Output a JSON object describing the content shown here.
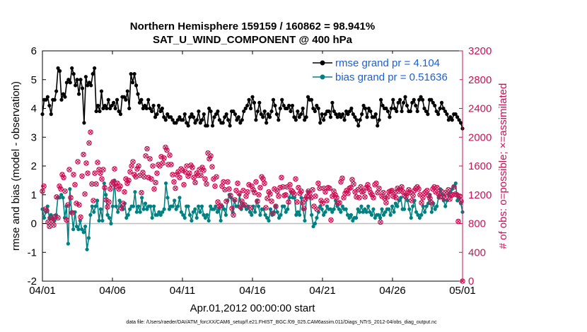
{
  "chart_data": {
    "type": "line",
    "title_line1": "Northern Hemisphere 159159 / 160862 = 98.941%",
    "title_line2": "SAT_U_WIND_COMPONENT @ 400 hPa",
    "xlabel": "Apr.01,2012 00:00:00 start",
    "ylabel_left": "rmse and bias (model - observation)",
    "ylabel_right": "# of obs: o=possible; ×=assimilated",
    "footer": "data file: /Users/raeder/DAI/ATM_forcXX/CAM6_setup/f.e21.FHIST_BGC.f09_025.CAM6assim.011/Diags_NTrS_2012-04/obs_diag_output.nc",
    "x_range": [
      0,
      30
    ],
    "x_ticks": [
      0,
      5,
      10,
      15,
      20,
      25,
      30
    ],
    "x_tick_labels": [
      "04/01",
      "04/06",
      "04/11",
      "04/16",
      "04/21",
      "04/26",
      "05/01"
    ],
    "ylim_left": [
      -2,
      6
    ],
    "y_ticks_left": [
      -2,
      -1,
      0,
      1,
      2,
      3,
      4,
      5,
      6
    ],
    "ylim_right": [
      0,
      3200
    ],
    "y_ticks_right": [
      0,
      400,
      800,
      1200,
      1600,
      2000,
      2400,
      2800,
      3200
    ],
    "colors": {
      "rmse": "#000000",
      "bias": "#008080",
      "obs": "#cc1155",
      "right_axis": "#cc1155",
      "legend_text": "#1a5fd8",
      "zero_line": "#bdbdbd"
    },
    "legend_location": "top-right",
    "series": [
      {
        "name": "rmse grand pr = 4.104",
        "key": "rmse",
        "values": [
          3.8,
          4.3,
          4.3,
          4.4,
          4.1,
          3.8,
          4.3,
          4.3,
          4.6,
          5.4,
          5.3,
          4.3,
          4.5,
          4.4,
          4.9,
          5.0,
          4.9,
          5.4,
          5.2,
          4.8,
          5.0,
          4.5,
          5.0,
          4.7,
          3.5,
          5.1,
          4.8,
          4.9,
          4.8,
          5.2,
          5.4,
          3.9,
          4.1,
          3.9,
          4.6,
          4.0,
          4.1,
          4.0,
          4.3,
          4.0,
          4.1,
          4.2,
          4.0,
          4.3,
          3.9,
          3.8,
          4.4,
          4.4,
          4.3,
          4.6,
          4.0,
          5.2,
          4.9,
          5.2,
          4.8,
          4.5,
          4.2,
          4.3,
          4.0,
          4.1,
          4.0,
          4.3,
          4.0,
          3.9,
          4.1,
          3.7,
          3.8,
          4.1,
          3.9,
          4.0,
          3.7,
          3.6,
          3.8,
          3.7,
          3.7,
          3.6,
          3.5,
          3.5,
          3.6,
          3.7,
          3.6,
          3.6,
          3.8,
          3.5,
          3.4,
          3.7,
          3.8,
          3.7,
          3.5,
          3.6,
          3.9,
          3.5,
          3.6,
          3.8,
          3.4,
          3.4,
          4.0,
          3.9,
          3.4,
          3.7,
          3.8,
          3.9,
          3.6,
          3.5,
          3.5,
          3.7,
          3.8,
          3.6,
          3.4,
          3.9,
          3.9,
          3.8,
          3.6,
          3.7,
          3.5,
          3.6,
          3.9,
          4.0,
          4.1,
          4.3,
          4.0,
          4.4,
          4.2,
          3.6,
          3.9,
          4.2,
          3.8,
          3.7,
          3.9,
          3.5,
          3.8,
          3.7,
          3.9,
          4.3,
          4.1,
          3.8,
          3.6,
          4.0,
          4.3,
          4.1,
          4.0,
          4.0,
          4.1,
          3.9,
          4.1,
          3.7,
          3.6,
          3.9,
          3.7,
          3.8,
          4.0,
          3.6,
          3.7,
          4.4,
          4.3,
          4.3,
          4.0,
          3.9,
          4.1,
          4.0,
          3.5,
          3.8,
          3.6,
          3.8,
          3.9,
          3.9,
          3.7,
          4.2,
          3.9,
          3.8,
          3.7,
          3.8,
          3.7,
          3.8,
          3.6,
          3.9,
          3.8,
          3.9,
          4.0,
          3.8,
          3.7,
          3.6,
          3.4,
          3.6,
          3.8,
          4.1,
          4.0,
          3.7,
          4.0,
          3.9,
          3.7,
          3.7,
          3.8,
          3.4,
          3.6,
          4.3,
          4.1,
          4.0,
          4.0,
          3.9,
          3.7,
          4.0,
          4.3,
          4.0,
          3.9,
          4.2,
          4.3,
          3.9,
          4.2,
          4.4,
          4.1,
          3.9,
          3.9,
          4.2,
          4.3,
          4.1,
          3.9,
          4.3,
          4.4,
          4.3,
          4.0,
          3.9,
          3.8,
          4.3,
          4.3,
          4.2,
          4.1,
          3.9,
          3.8,
          4.0,
          4.2,
          4.0,
          3.9,
          3.8,
          3.6,
          3.7,
          3.6,
          3.8,
          3.8,
          3.7,
          3.6,
          3.5,
          3.3
        ]
      },
      {
        "name": "bias grand pr = 0.51636",
        "key": "bias",
        "values": [
          0.5,
          0.2,
          0.4,
          0.6,
          0.2,
          0.3,
          0.2,
          0.1,
          0.3,
          0.9,
          0.9,
          1.0,
          0.9,
          0.2,
          0.6,
          -0.7,
          1.2,
          0.4,
          -0.2,
          0.4,
          -0.1,
          -0.2,
          0.1,
          -0.2,
          -0.3,
          -0.1,
          -0.9,
          -0.5,
          0.3,
          0.6,
          0.4,
          0.6,
          0.8,
          0.1,
          0.5,
          0.1,
          1.4,
          1.0,
          0.3,
          0.2,
          0.0,
          0.6,
          1.5,
          0.6,
          0.4,
          0.8,
          0.6,
          0.5,
          0.7,
          0.2,
          0.3,
          0.5,
          0.6,
          0.6,
          1.1,
          0.4,
          0.6,
          0.4,
          0.9,
          0.5,
          0.7,
          0.5,
          0.6,
          0.6,
          0.2,
          0.6,
          0.3,
          0.3,
          0.4,
          0.3,
          0.4,
          0.5,
          1.4,
          0.9,
          0.5,
          0.6,
          0.6,
          0.8,
          0.5,
          0.6,
          0.9,
          0.4,
          0.3,
          0.2,
          0.6,
          0.6,
          0.3,
          0.1,
          0.4,
          0.5,
          0.2,
          0.6,
          0.4,
          0.6,
          0.3,
          0.2,
          0.3,
          0.1,
          0.6,
          0.5,
          0.5,
          0.6,
          0.4,
          0.5,
          0.1,
          0.6,
          0.5,
          0.3,
          0.8,
          1.0,
          0.9,
          0.4,
          0.8,
          0.6,
          0.6,
          1.0,
          0.5,
          0.7,
          0.6,
          0.5,
          0.6,
          0.4,
          0.3,
          0.6,
          0.4,
          0.8,
          0.6,
          0.3,
          0.5,
          0.5,
          0.3,
          0.2,
          0.1,
          0.5,
          0.3,
          0.4,
          0.6,
          0.4,
          0.2,
          0.3,
          0.6,
          0.6,
          0.4,
          0.5,
          0.9,
          1.1,
          0.9,
          0.9,
          0.3,
          0.4,
          0.3,
          0.9,
          0.5,
          0.1,
          0.9,
          1.1,
          0.9,
          0.3,
          -0.1,
          0.0,
          0.2,
          0.4,
          0.6,
          0.5,
          0.3,
          0.4,
          0.6,
          0.5,
          0.5,
          0.4,
          0.5,
          0.8,
          0.6,
          0.5,
          0.4,
          0.6,
          0.5,
          0.5,
          0.3,
          0.2,
          0.3,
          0.1,
          0.2,
          0.2,
          0.5,
          0.4,
          0.6,
          0.4,
          0.5,
          0.4,
          0.6,
          0.4,
          0.3,
          0.5,
          0.2,
          0.3,
          0.3,
          0.2,
          0.5,
          0.3,
          0.4,
          0.5,
          0.5,
          0.3,
          0.6,
          0.4,
          0.7,
          0.6,
          0.8,
          0.9,
          0.5,
          0.5,
          1.0,
          0.8,
          0.5,
          0.2,
          0.6,
          0.8,
          0.4,
          0.3,
          0.2,
          0.3,
          0.6,
          0.4,
          0.6,
          0.7,
          1.0,
          0.4,
          0.7,
          0.5,
          0.6,
          0.9,
          1.2,
          1.0,
          0.8,
          0.6,
          0.8,
          1.0,
          1.1,
          1.2,
          1.3,
          1.4,
          0.8,
          0.9,
          0.7,
          0.4
        ]
      },
      {
        "name": "# of obs (assimilated)",
        "key": "obs",
        "values": [
          1250,
          1320,
          1000,
          980,
          820,
          760,
          880,
          840,
          780,
          900,
          1170,
          880,
          1320,
          1280,
          1480,
          1440,
          1250,
          850,
          1060,
          1550,
          1160,
          950,
          1480,
          1340,
          1080,
          1660,
          1060,
          890,
          1460,
          1760,
          1210,
          1640,
          1500,
          1920,
          2070,
          1350,
          1120,
          1500,
          1350,
          1650,
          1550,
          1500,
          1420,
          1550,
          1300,
          1130,
          1030,
          1100,
          1280,
          1350,
          1380,
          1560,
          1320,
          1360,
          1280,
          1320,
          1010,
          1080,
          1240,
          1420,
          1360,
          1400,
          1520,
          1600,
          1660,
          1480,
          1450,
          1560,
          1600,
          1470,
          1230,
          1510,
          1450,
          1740,
          1840,
          1440,
          1700,
          1420,
          1600,
          1280,
          1370,
          1500,
          1620,
          1600,
          1730,
          1640,
          1710,
          1860,
          1820,
          1620,
          1750,
          1620,
          1480,
          1380,
          1290,
          1480,
          1520,
          1440,
          1560,
          1540,
          1340,
          1520,
          1600,
          1460,
          1500,
          1610,
          1580,
          1440,
          1370,
          1500,
          1470,
          1550,
          1470,
          1580,
          1540,
          1420,
          1350,
          1780,
          1700,
          1740,
          1590,
          1420,
          1320,
          1450,
          1100,
          1040,
          1050,
          1320,
          1380,
          1270,
          1110,
          1380,
          1280,
          1190,
          1010,
          920,
          1130,
          1260,
          1360,
          1220,
          1030,
          1110,
          1260,
          1060,
          1180,
          1240,
          1340,
          1020,
          1320,
          1270,
          1230,
          1380,
          1110,
          1200,
          1300,
          1450,
          1420,
          1360,
          1020,
          1150,
          1240,
          1210,
          1110,
          940,
          1280,
          1040,
          1250,
          1180,
          1300,
          1440,
          1310,
          1190,
          1200,
          1310,
          1100,
          1340,
          1260,
          1240,
          1210,
          1420,
          1100,
          1300,
          1220,
          1250,
          1090,
          1010,
          1140,
          1180,
          1250,
          1220,
          1160,
          1270,
          1040,
          1180,
          1000,
          1360,
          1290,
          1120,
          1080,
          1290,
          1240,
          1120,
          1300,
          1290,
          850,
          1180,
          1250,
          1200,
          1160,
          1080,
          1090,
          1380,
          1430,
          1160,
          1220,
          1260,
          1220,
          1290,
          1300,
          1410,
          1350,
          1240,
          1170,
          1270,
          1160,
          1310,
          1240,
          1250,
          1170,
          1300,
          1340,
          1280,
          1230,
          1200,
          1160,
          1340,
          1360,
          1230,
          1290,
          820,
          1180,
          1230,
          1150,
          1090,
          1170,
          1240,
          1250,
          1260,
          1180,
          1230,
          1160,
          1290,
          1250,
          1270,
          1310,
          1240,
          1190,
          1170,
          1220,
          1270,
          1230,
          1120,
          1190,
          1260,
          1290,
          1310,
          1280,
          1200,
          1090,
          1160,
          1220,
          1240,
          1260,
          1190,
          1150,
          1090,
          1280,
          1310,
          1240,
          1300,
          1210,
          1170,
          1250,
          1170,
          1150,
          1230,
          1210,
          1270,
          1140,
          1190,
          1200,
          1310,
          1210,
          1200,
          830,
          1180,
          1110,
          0
        ]
      }
    ]
  }
}
